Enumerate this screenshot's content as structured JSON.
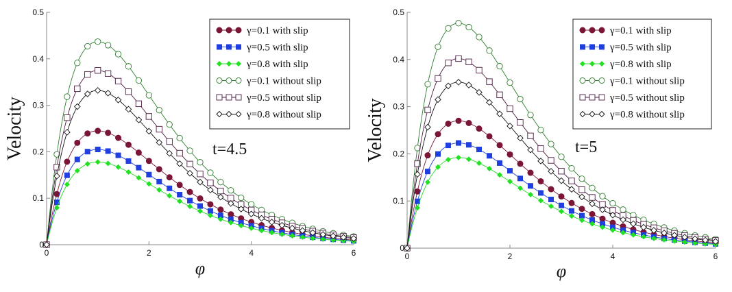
{
  "figure": {
    "legend_entries": [
      {
        "label": "γ=0.1 with slip",
        "color": "#7B1535",
        "marker": "filled-circle"
      },
      {
        "label": "γ=0.5 with slip",
        "color": "#1F3FE0",
        "marker": "filled-square"
      },
      {
        "label": "γ=0.8 with slip",
        "color": "#22E022",
        "marker": "filled-diamond"
      },
      {
        "label": "γ=0.1 without slip",
        "color": "#2E7D2E",
        "marker": "open-circle"
      },
      {
        "label": "γ=0.5 without slip",
        "color": "#4A1A40",
        "marker": "open-square"
      },
      {
        "label": "γ=0.8 without slip",
        "color": "#111111",
        "marker": "open-diamond"
      }
    ]
  },
  "chart_data": [
    {
      "type": "line",
      "title": "",
      "annotation": "t=4.5",
      "xlabel": "φ",
      "ylabel": "Velocity",
      "xlim": [
        0,
        6
      ],
      "ylim": [
        0,
        0.5
      ],
      "xticks": [
        "0",
        "2",
        "4",
        "6"
      ],
      "yticks": [
        "0",
        "0.1",
        "0.2",
        "0.3",
        "0.4",
        "0.5"
      ],
      "grid": false,
      "legend_position": "top-right",
      "series": [
        {
          "name": "γ=0.1 with slip",
          "peak": 0.245
        },
        {
          "name": "γ=0.5 with slip",
          "peak": 0.205
        },
        {
          "name": "γ=0.8 with slip",
          "peak": 0.178
        },
        {
          "name": "γ=0.1 without slip",
          "peak": 0.437
        },
        {
          "name": "γ=0.5 without slip",
          "peak": 0.375
        },
        {
          "name": "γ=0.8 without slip",
          "peak": 0.332
        }
      ]
    },
    {
      "type": "line",
      "title": "",
      "annotation": "t=5",
      "xlabel": "φ",
      "ylabel": "Velocity",
      "xlim": [
        0,
        6
      ],
      "ylim": [
        0,
        0.5
      ],
      "xticks": [
        "0",
        "2",
        "4",
        "6"
      ],
      "yticks": [
        "0",
        "0.1",
        "0.2",
        "0.3",
        "0.4",
        "0.5"
      ],
      "grid": false,
      "legend_position": "top-right",
      "series": [
        {
          "name": "γ=0.1 with slip",
          "peak": 0.27
        },
        {
          "name": "γ=0.5 with slip",
          "peak": 0.223
        },
        {
          "name": "γ=0.8 with slip",
          "peak": 0.192
        },
        {
          "name": "γ=0.1 without slip",
          "peak": 0.477
        },
        {
          "name": "γ=0.5 without slip",
          "peak": 0.402
        },
        {
          "name": "γ=0.8 without slip",
          "peak": 0.352
        }
      ]
    }
  ]
}
